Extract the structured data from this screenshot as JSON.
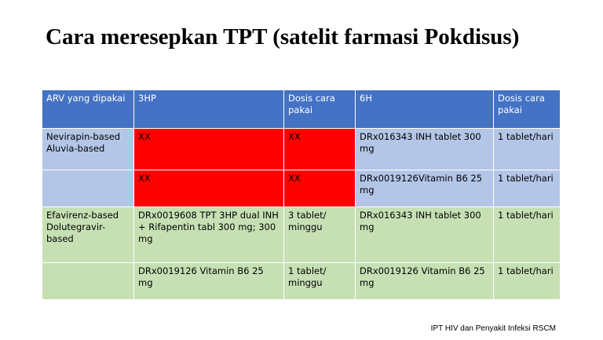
{
  "title": "Cara meresepkan TPT (satelit farmasi Pokdisus)",
  "table": {
    "headers": [
      "ARV yang dipakai",
      "3HP",
      "Dosis cara pakai",
      "6H",
      "Dosis cara pakai"
    ],
    "rows": [
      [
        "Nevirapin-based\nAluvia-based",
        "XX",
        "XX",
        "DRx016343 INH tablet 300 mg",
        "1 tablet/hari"
      ],
      [
        "",
        "XX",
        "XX",
        "DRx0019126Vitamin B6 25 mg",
        "1 tablet/hari"
      ],
      [
        "Efavirenz-based\nDolutegravir-based",
        "DRx0019608 TPT 3HP dual INH + Rifapentin tabl 300 mg; 300 mg",
        "3 tablet/ minggu",
        "DRx016343 INH  tablet 300 mg",
        "1 tablet/hari"
      ],
      [
        "",
        "DRx0019126 Vitamin B6 25 mg",
        "1 tablet/ minggu",
        "DRx0019126 Vitamin B6 25 mg",
        "1 tablet/hari"
      ]
    ]
  },
  "colors": {
    "header": "#4472c4",
    "rows_blue": "#b4c6e7",
    "rows_green": "#c6e0b4",
    "highlight_red": "#ff0000"
  },
  "footer": "IPT HIV dan Penyakit Infeksi RSCM"
}
